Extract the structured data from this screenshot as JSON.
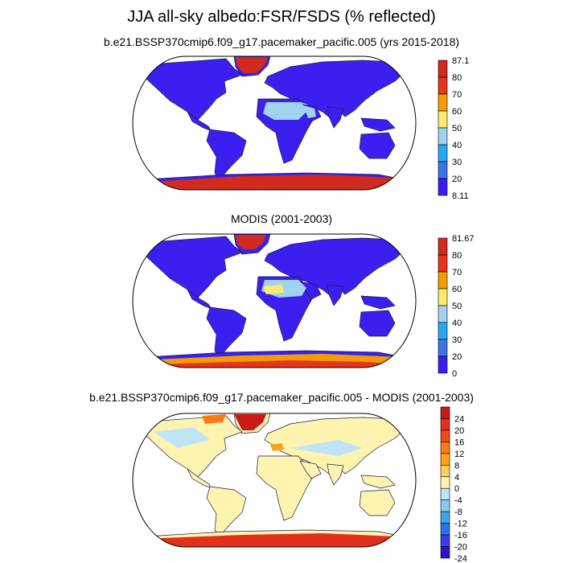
{
  "figure": {
    "title": "JJA all-sky albedo:FSR/FSDS (% reflected)"
  },
  "panels": [
    {
      "title": "b.e21.BSSP370cmip6.f09_g17.pacemaker_pacific.005 (yrs 2015-2018)",
      "colorbar": {
        "labels": [
          "87.1",
          "80",
          "70",
          "60",
          "50",
          "40",
          "30",
          "20",
          "8.11"
        ],
        "colors": [
          "#d12a1f",
          "#e8341b",
          "#f39c00",
          "#fdea70",
          "#9fd3ef",
          "#26a9f0",
          "#3f74e6",
          "#3b1ff0"
        ]
      }
    },
    {
      "title": "MODIS (2001-2003)",
      "colorbar": {
        "labels": [
          "81.67",
          "80",
          "70",
          "60",
          "50",
          "40",
          "30",
          "20",
          "0"
        ],
        "colors": [
          "#d12a1f",
          "#e8341b",
          "#f39c00",
          "#fdea70",
          "#9fd3ef",
          "#26a9f0",
          "#3f74e6",
          "#3b1ff0"
        ]
      }
    },
    {
      "title": "b.e21.BSSP370cmip6.f09_g17.pacemaker_pacific.005 - MODIS (2001-2003)",
      "colorbar": {
        "labels": [
          "24",
          "20",
          "16",
          "12",
          "8",
          "4",
          "0",
          "-4",
          "-8",
          "-12",
          "-16",
          "-20",
          "-24"
        ],
        "colors": [
          "#c81b17",
          "#e3301c",
          "#f24a1b",
          "#fa7a16",
          "#fca21b",
          "#fdd05a",
          "#fef4b0",
          "#bfe4f5",
          "#86ccef",
          "#3aa6ee",
          "#2f72e6",
          "#3a3fe6",
          "#3010c8"
        ]
      }
    }
  ]
}
